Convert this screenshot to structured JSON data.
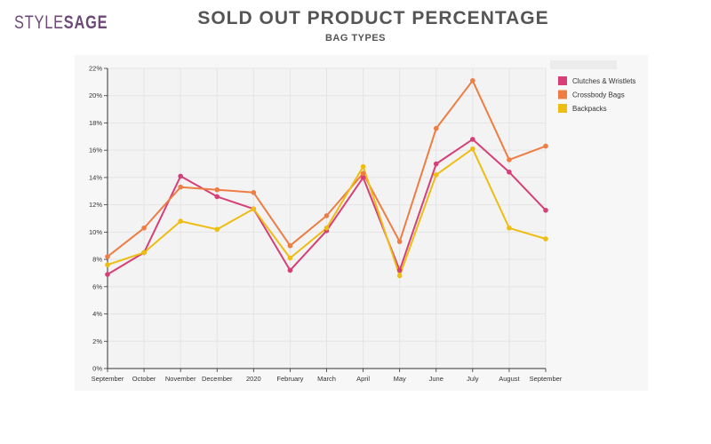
{
  "logo": {
    "style_text": "STYLE",
    "sage_text": "SAGE"
  },
  "header": {
    "title": "SOLD OUT PRODUCT PERCENTAGE",
    "subtitle": "BAG TYPES"
  },
  "chart_data": {
    "type": "line",
    "title": "SOLD OUT PRODUCT PERCENTAGE",
    "subtitle": "BAG TYPES",
    "xlabel": "",
    "ylabel": "",
    "categories": [
      "September",
      "October",
      "November",
      "December",
      "2020",
      "February",
      "March",
      "April",
      "May",
      "June",
      "July",
      "August",
      "September"
    ],
    "ylim": [
      0,
      22
    ],
    "yticks": [
      0,
      2,
      4,
      6,
      8,
      10,
      12,
      14,
      16,
      18,
      20,
      22
    ],
    "ytick_suffix": "%",
    "grid": true,
    "legend_position": "top-right",
    "series": [
      {
        "name": "Clutches & Wristlets",
        "color": "#d63f78",
        "values": [
          6.9,
          8.5,
          14.1,
          12.6,
          11.7,
          7.2,
          10.1,
          14.0,
          7.2,
          15.0,
          16.8,
          14.4,
          11.6
        ]
      },
      {
        "name": "Crossbody Bags",
        "color": "#ee7d44",
        "values": [
          8.2,
          10.3,
          13.3,
          13.1,
          12.9,
          9.0,
          11.2,
          14.3,
          9.3,
          17.6,
          21.1,
          15.3,
          16.3
        ]
      },
      {
        "name": "Backpacks",
        "color": "#eebd13",
        "values": [
          7.6,
          8.5,
          10.8,
          10.2,
          11.7,
          8.1,
          10.3,
          14.8,
          6.8,
          14.2,
          16.1,
          10.3,
          9.5
        ]
      }
    ]
  }
}
